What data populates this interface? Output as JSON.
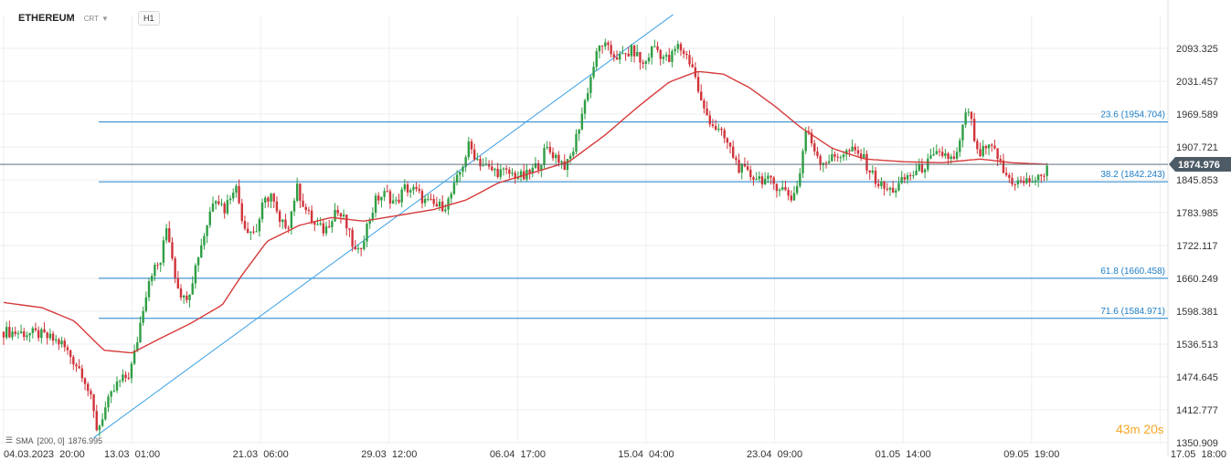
{
  "header": {
    "symbol": "ETHEREUM",
    "mode": "CRT",
    "timeframe": "H1"
  },
  "indicator": {
    "name": "SMA",
    "params": "[200,  0]",
    "value": "1876.995"
  },
  "timer": {
    "minutes": "43",
    "min_unit": "m",
    "seconds": "20",
    "sec_unit": "s"
  },
  "colors": {
    "up": "#2e9e44",
    "down": "#d0343a",
    "sma": "#d63a3a",
    "fib": "#1e7fc8",
    "trend": "#3aa0e6",
    "price_tag": "#4d5b66",
    "grid": "#eeeeee",
    "axis_text": "#333333",
    "timer": "#f5a623"
  },
  "chart_data": {
    "type": "candlestick",
    "title": "",
    "xlabel": "",
    "ylabel": "",
    "ylim": [
      1350.909,
      2155.193
    ],
    "x_ticks": [
      "04.03.2023  20:00",
      "13.03  01:00",
      "21.03  06:00",
      "29.03  12:00",
      "06.04  17:00",
      "15.04  04:00",
      "23.04  09:00",
      "01.05  14:00",
      "09.05  19:00",
      "17.05  18:00"
    ],
    "y_ticks": [
      "2093.325",
      "2031.457",
      "1969.589",
      "1907.721",
      "1845.853",
      "1783.985",
      "1722.117",
      "1660.249",
      "1598.381",
      "1536.513",
      "1474.645",
      "1412.777",
      "1350.909"
    ],
    "y_tick_values": [
      2093.325,
      2031.457,
      1969.589,
      1907.721,
      1845.853,
      1783.985,
      1722.117,
      1660.249,
      1598.381,
      1536.513,
      1474.645,
      1412.777,
      1350.909
    ],
    "current_price": 1874.976,
    "current_price_label": "1874.976",
    "fib_levels": [
      {
        "label": "23.6 (1954.704)",
        "value": 1954.704
      },
      {
        "label": "38.2 (1842.243)",
        "value": 1842.243
      },
      {
        "label": "61.8 (1660.458)",
        "value": 1660.458
      },
      {
        "label": "71.6 (1584.971)",
        "value": 1584.971
      }
    ],
    "fib_start_tick": 0.74,
    "trendline": {
      "from": {
        "tick": 0.7,
        "value": 1360
      },
      "to": {
        "tick": 5.21,
        "value": 2157
      }
    },
    "price_path": [
      [
        0.0,
        1560
      ],
      [
        0.28,
        1555
      ],
      [
        0.45,
        1538
      ],
      [
        0.62,
        1480
      ],
      [
        0.68,
        1430
      ],
      [
        0.73,
        1372
      ],
      [
        0.78,
        1410
      ],
      [
        0.88,
        1460
      ],
      [
        0.98,
        1480
      ],
      [
        1.03,
        1530
      ],
      [
        1.08,
        1600
      ],
      [
        1.14,
        1670
      ],
      [
        1.22,
        1690
      ],
      [
        1.27,
        1760
      ],
      [
        1.3,
        1720
      ],
      [
        1.34,
        1660
      ],
      [
        1.4,
        1620
      ],
      [
        1.45,
        1640
      ],
      [
        1.52,
        1710
      ],
      [
        1.58,
        1760
      ],
      [
        1.64,
        1820
      ],
      [
        1.72,
        1790
      ],
      [
        1.8,
        1840
      ],
      [
        1.87,
        1760
      ],
      [
        1.96,
        1745
      ],
      [
        2.02,
        1800
      ],
      [
        2.08,
        1820
      ],
      [
        2.15,
        1760
      ],
      [
        2.22,
        1765
      ],
      [
        2.28,
        1832
      ],
      [
        2.35,
        1790
      ],
      [
        2.42,
        1760
      ],
      [
        2.5,
        1750
      ],
      [
        2.58,
        1790
      ],
      [
        2.65,
        1770
      ],
      [
        2.75,
        1700
      ],
      [
        2.83,
        1760
      ],
      [
        2.9,
        1810
      ],
      [
        2.98,
        1820
      ],
      [
        3.05,
        1800
      ],
      [
        3.12,
        1830
      ],
      [
        3.2,
        1826
      ],
      [
        3.28,
        1805
      ],
      [
        3.38,
        1795
      ],
      [
        3.45,
        1800
      ],
      [
        3.52,
        1840
      ],
      [
        3.58,
        1880
      ],
      [
        3.62,
        1910
      ],
      [
        3.7,
        1880
      ],
      [
        3.78,
        1865
      ],
      [
        3.88,
        1860
      ],
      [
        3.98,
        1855
      ],
      [
        4.05,
        1850
      ],
      [
        4.1,
        1860
      ],
      [
        4.18,
        1880
      ],
      [
        4.22,
        1905
      ],
      [
        4.3,
        1890
      ],
      [
        4.38,
        1870
      ],
      [
        4.43,
        1900
      ],
      [
        4.48,
        1950
      ],
      [
        4.53,
        2000
      ],
      [
        4.6,
        2070
      ],
      [
        4.65,
        2105
      ],
      [
        4.72,
        2085
      ],
      [
        4.8,
        2075
      ],
      [
        4.9,
        2090
      ],
      [
        4.98,
        2060
      ],
      [
        5.06,
        2100
      ],
      [
        5.12,
        2080
      ],
      [
        5.18,
        2070
      ],
      [
        5.24,
        2098
      ],
      [
        5.3,
        2085
      ],
      [
        5.36,
        2060
      ],
      [
        5.44,
        1980
      ],
      [
        5.52,
        1950
      ],
      [
        5.62,
        1920
      ],
      [
        5.72,
        1870
      ],
      [
        5.8,
        1855
      ],
      [
        5.88,
        1850
      ],
      [
        5.98,
        1840
      ],
      [
        6.06,
        1830
      ],
      [
        6.14,
        1810
      ],
      [
        6.2,
        1860
      ],
      [
        6.24,
        1940
      ],
      [
        6.3,
        1910
      ],
      [
        6.36,
        1880
      ],
      [
        6.44,
        1885
      ],
      [
        6.52,
        1895
      ],
      [
        6.6,
        1900
      ],
      [
        6.68,
        1890
      ],
      [
        6.75,
        1860
      ],
      [
        6.8,
        1840
      ],
      [
        6.88,
        1825
      ],
      [
        6.95,
        1830
      ],
      [
        7.02,
        1850
      ],
      [
        7.1,
        1860
      ],
      [
        7.18,
        1875
      ],
      [
        7.25,
        1890
      ],
      [
        7.32,
        1895
      ],
      [
        7.4,
        1880
      ],
      [
        7.45,
        1920
      ],
      [
        7.49,
        1980
      ],
      [
        7.53,
        1955
      ],
      [
        7.58,
        1890
      ],
      [
        7.65,
        1905
      ],
      [
        7.72,
        1900
      ],
      [
        7.78,
        1860
      ],
      [
        7.84,
        1845
      ],
      [
        7.92,
        1840
      ],
      [
        8.0,
        1845
      ],
      [
        8.08,
        1848
      ],
      [
        8.12,
        1875
      ]
    ],
    "sma_path": [
      [
        0.0,
        1615
      ],
      [
        0.3,
        1605
      ],
      [
        0.55,
        1580
      ],
      [
        0.78,
        1525
      ],
      [
        1.0,
        1520
      ],
      [
        1.2,
        1545
      ],
      [
        1.45,
        1575
      ],
      [
        1.7,
        1610
      ],
      [
        1.85,
        1665
      ],
      [
        2.05,
        1730
      ],
      [
        2.3,
        1760
      ],
      [
        2.55,
        1775
      ],
      [
        2.8,
        1768
      ],
      [
        3.05,
        1778
      ],
      [
        3.35,
        1790
      ],
      [
        3.6,
        1808
      ],
      [
        3.85,
        1840
      ],
      [
        4.1,
        1858
      ],
      [
        4.4,
        1880
      ],
      [
        4.68,
        1930
      ],
      [
        4.92,
        1980
      ],
      [
        5.18,
        2030
      ],
      [
        5.4,
        2050
      ],
      [
        5.6,
        2045
      ],
      [
        5.8,
        2020
      ],
      [
        6.0,
        1985
      ],
      [
        6.2,
        1945
      ],
      [
        6.45,
        1905
      ],
      [
        6.7,
        1885
      ],
      [
        7.0,
        1880
      ],
      [
        7.3,
        1878
      ],
      [
        7.6,
        1885
      ],
      [
        7.85,
        1878
      ],
      [
        8.12,
        1875
      ]
    ]
  }
}
